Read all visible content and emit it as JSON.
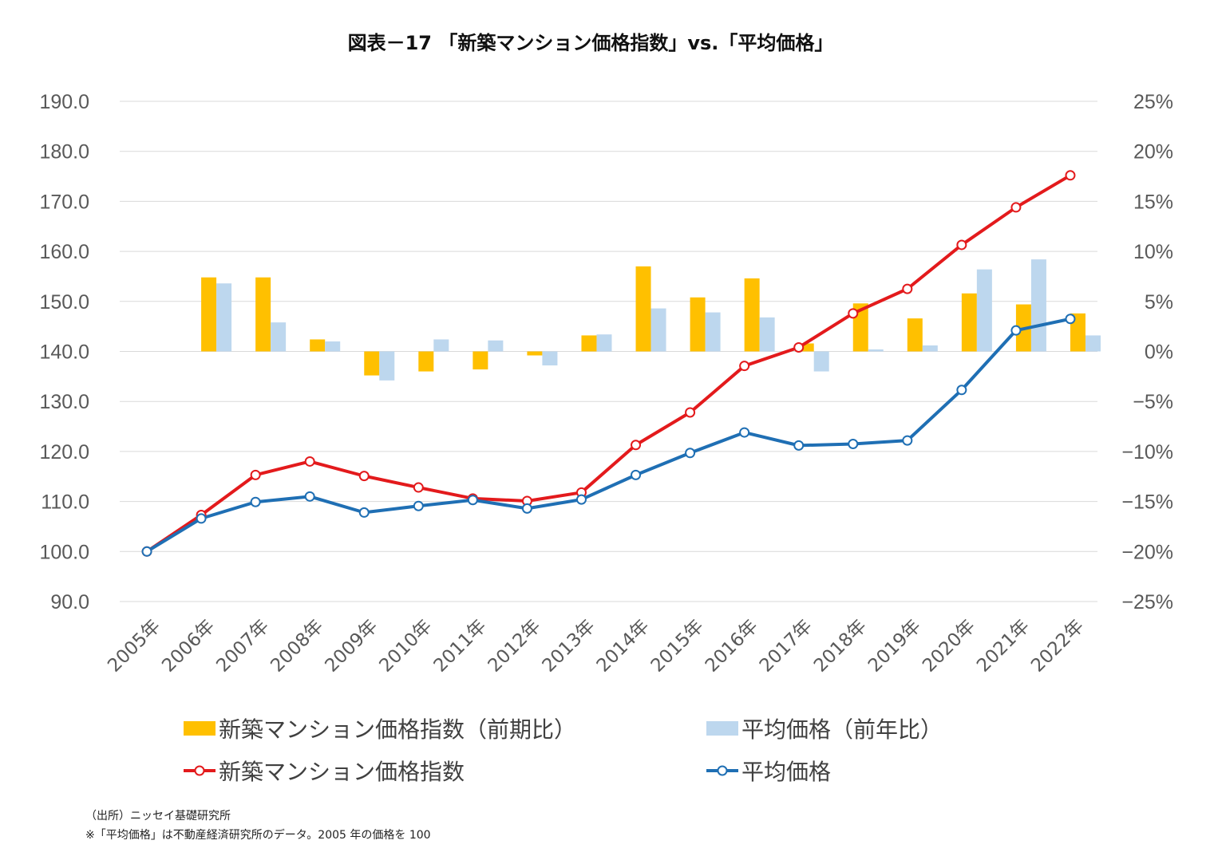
{
  "title": "図表－17 「新築マンション価格指数」vs.「平均価格」",
  "notes": {
    "source": "（出所）ニッセイ基礎研究所",
    "remark": "※「平均価格」は不動産経済研究所のデータ。2005 年の価格を 100"
  },
  "colors": {
    "index_bar": "#FFC000",
    "avg_bar": "#BDD7EE",
    "index_line": "#E31A1C",
    "avg_line": "#1F6FB4",
    "grid": "#D9D9D9",
    "axis_text": "#595959"
  },
  "chart_data": {
    "type": "bar+line",
    "title": "図表－17 「新築マンション価格指数」vs.「平均価格」",
    "categories": [
      "2005年",
      "2006年",
      "2007年",
      "2008年",
      "2009年",
      "2010年",
      "2011年",
      "2012年",
      "2013年",
      "2014年",
      "2015年",
      "2016年",
      "2017年",
      "2018年",
      "2019年",
      "2020年",
      "2021年",
      "2022年"
    ],
    "y_left": {
      "min": 90,
      "max": 190,
      "step": 10,
      "tick_labels": [
        "90.0",
        "100.0",
        "110.0",
        "120.0",
        "130.0",
        "140.0",
        "150.0",
        "160.0",
        "170.0",
        "180.0",
        "190.0"
      ]
    },
    "y_right": {
      "min": -25,
      "max": 25,
      "step": 5,
      "tick_labels": [
        "−25%",
        "−20%",
        "−15%",
        "−10%",
        "−5%",
        "0%",
        "5%",
        "10%",
        "15%",
        "20%",
        "25%"
      ]
    },
    "grid": true,
    "legend_position": "bottom",
    "series": [
      {
        "name": "新築マンション価格指数（前期比）",
        "type": "bar",
        "axis": "right",
        "values": [
          null,
          7.4,
          7.4,
          1.2,
          -2.4,
          -2.0,
          -1.8,
          -0.4,
          1.6,
          8.5,
          5.4,
          7.3,
          0.8,
          4.8,
          3.3,
          5.8,
          4.7,
          3.8
        ]
      },
      {
        "name": "平均価格（前年比）",
        "type": "bar",
        "axis": "right",
        "values": [
          null,
          6.8,
          2.9,
          1.0,
          -2.9,
          1.2,
          1.1,
          -1.4,
          1.7,
          4.3,
          3.9,
          3.4,
          -2.0,
          0.2,
          0.6,
          8.2,
          9.2,
          1.6
        ]
      },
      {
        "name": "新築マンション価格指数",
        "type": "line",
        "axis": "left",
        "values": [
          100.0,
          107.3,
          115.3,
          118.0,
          115.1,
          112.8,
          110.6,
          110.1,
          111.8,
          121.3,
          127.8,
          137.1,
          140.8,
          147.6,
          152.5,
          161.3,
          168.8,
          175.2
        ]
      },
      {
        "name": "平均価格",
        "type": "line",
        "axis": "left",
        "values": [
          100.0,
          106.6,
          109.9,
          111.0,
          107.8,
          109.1,
          110.3,
          108.6,
          110.4,
          115.3,
          119.7,
          123.8,
          121.2,
          121.5,
          122.2,
          132.3,
          144.2,
          146.5
        ]
      }
    ]
  }
}
